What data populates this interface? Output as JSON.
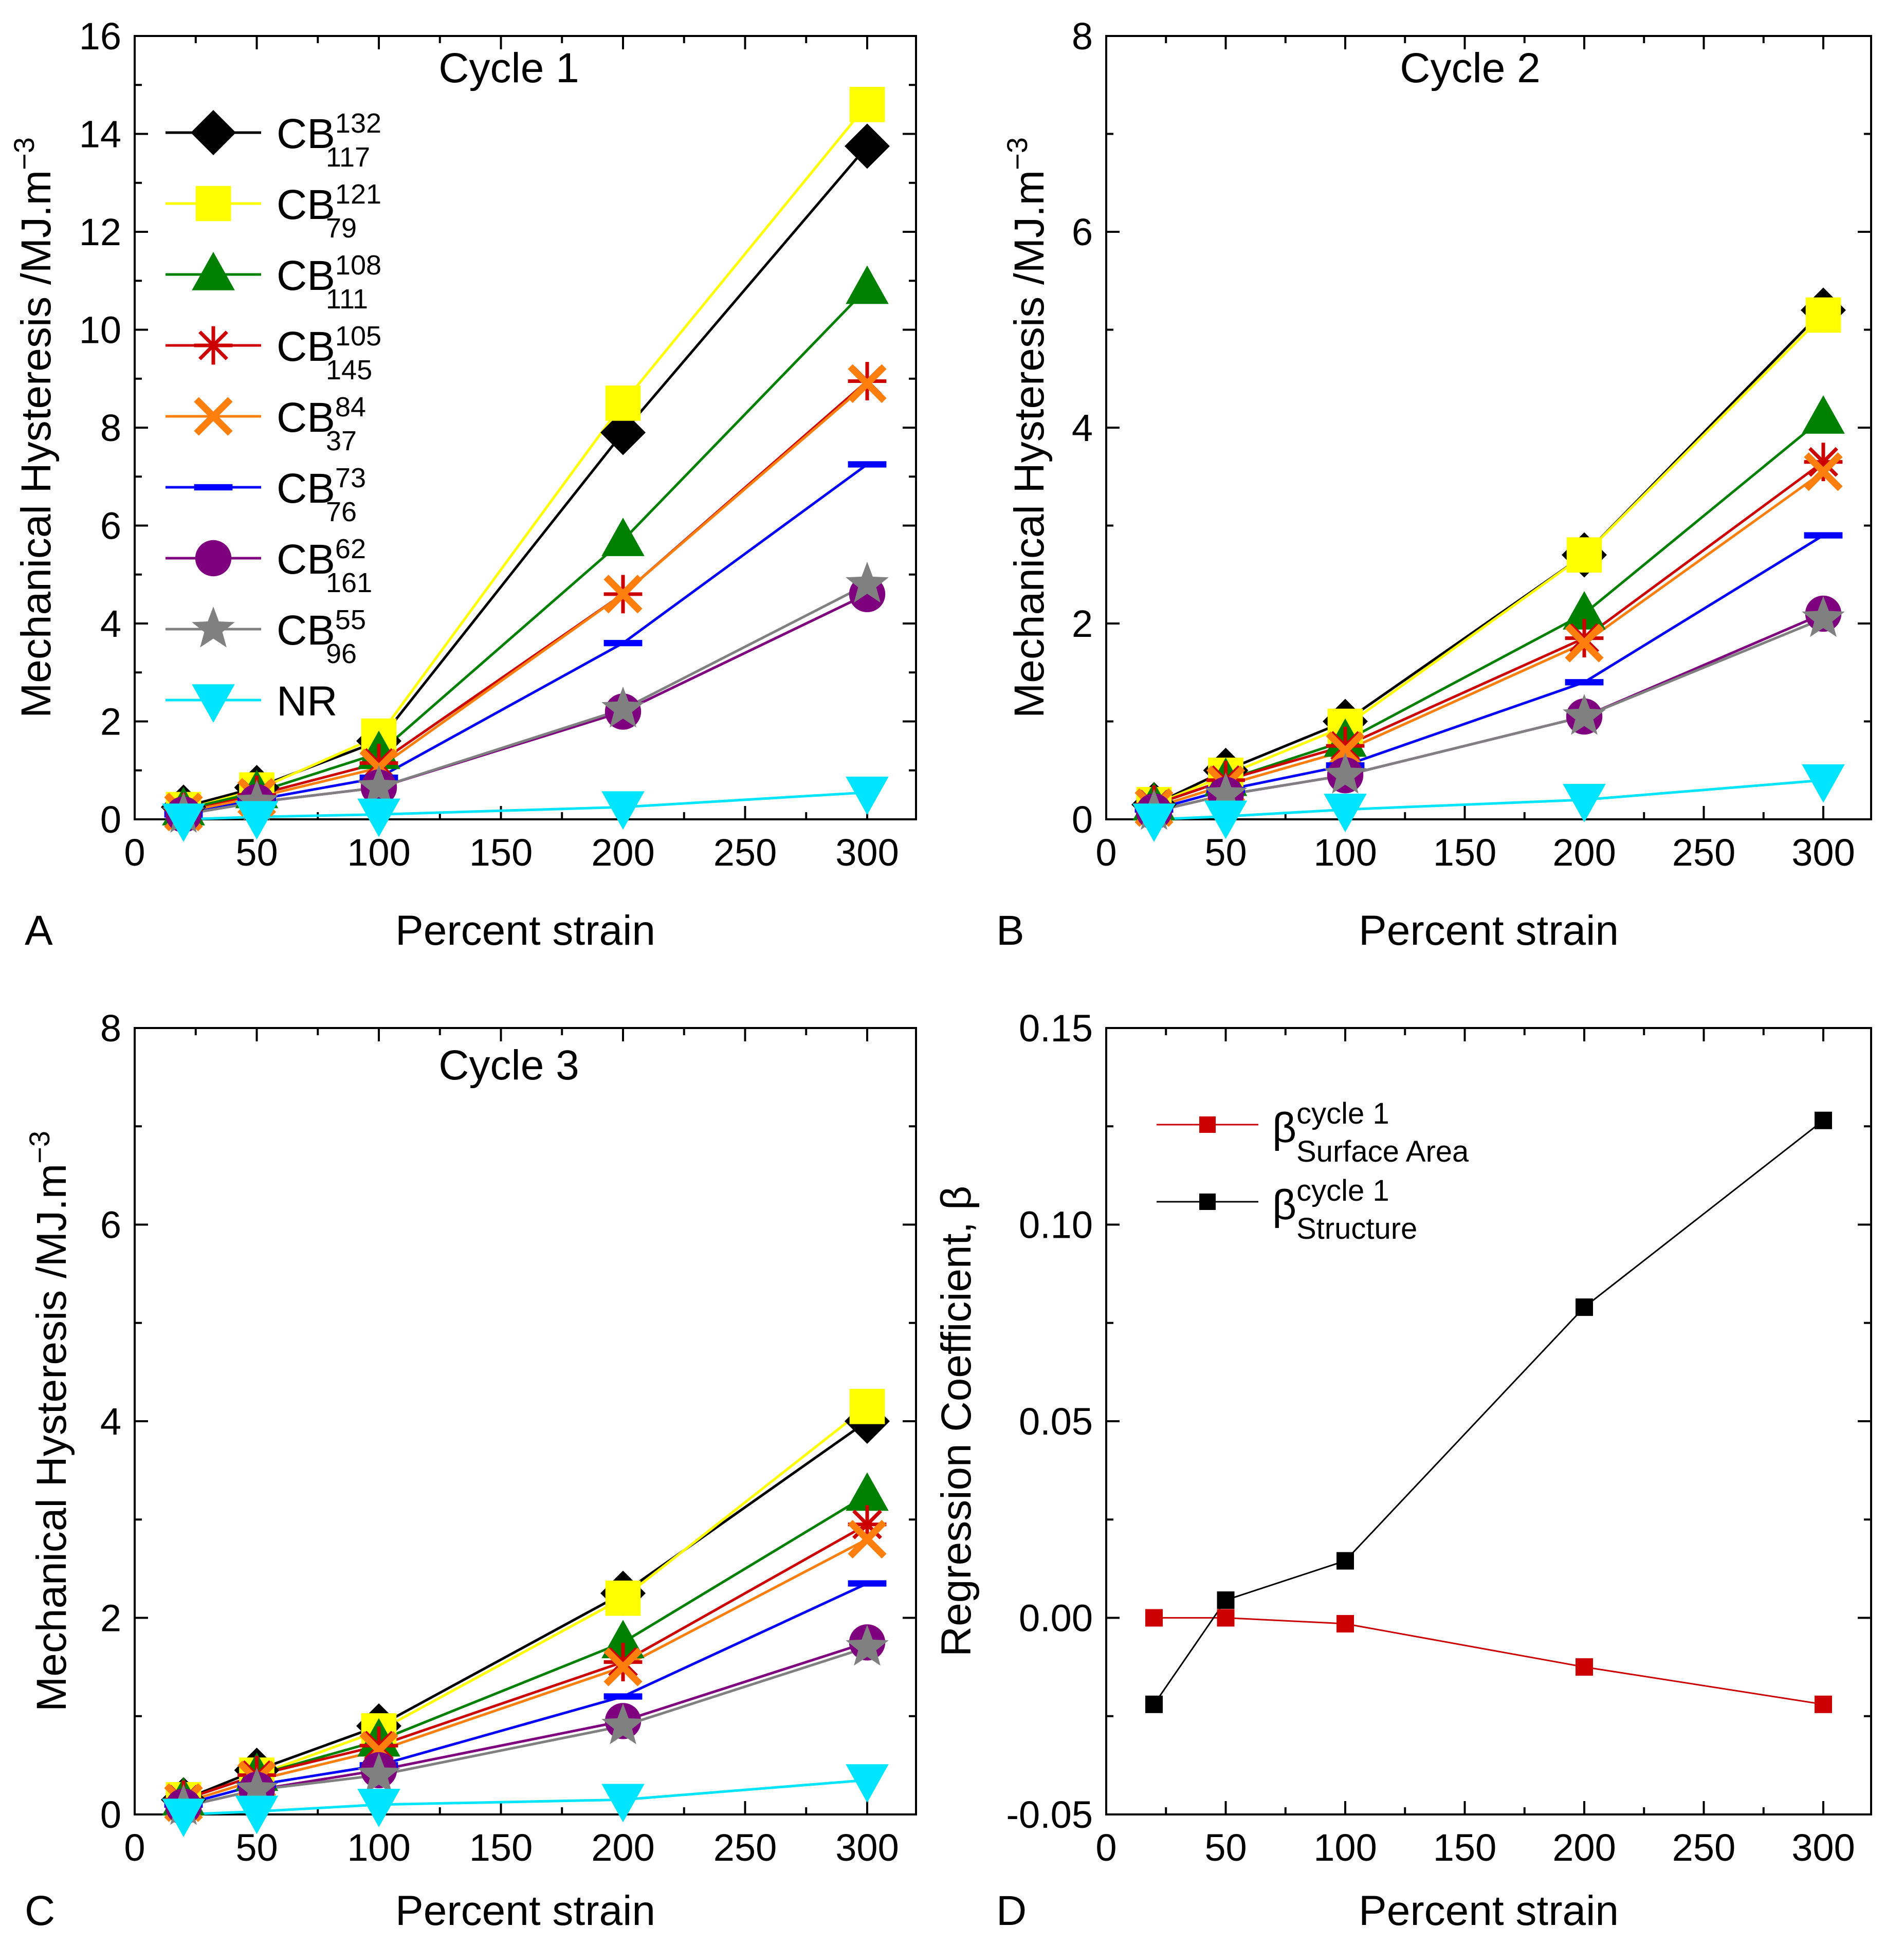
{
  "figure": {
    "panel_ids": [
      "A",
      "B",
      "C",
      "D"
    ]
  },
  "chart_data": [
    {
      "id": "A",
      "type": "line",
      "title": "Cycle 1",
      "xlabel": "Percent strain",
      "ylabel": "Mechanical Hysteresis /MJ.m",
      "ylabel_sup": "−3",
      "xlim": [
        0,
        320
      ],
      "ylim": [
        0,
        16
      ],
      "xticks": [
        0,
        50,
        100,
        150,
        200,
        250,
        300
      ],
      "yticks": [
        0,
        2,
        4,
        6,
        8,
        10,
        12,
        14,
        16
      ],
      "x": [
        20,
        50,
        100,
        200,
        300
      ],
      "series": [
        {
          "name": "CB",
          "sup": "132",
          "sub": "117",
          "color": "#000000",
          "marker": "diamond",
          "values": [
            0.25,
            0.65,
            1.6,
            7.9,
            13.75
          ]
        },
        {
          "name": "CB",
          "sup": "121",
          "sub": "79",
          "color": "#ffff00",
          "marker": "square",
          "values": [
            0.2,
            0.6,
            1.7,
            8.5,
            14.6
          ]
        },
        {
          "name": "CB",
          "sup": "108",
          "sub": "111",
          "color": "#008000",
          "marker": "triangle-up",
          "values": [
            0.2,
            0.55,
            1.35,
            5.7,
            10.85
          ]
        },
        {
          "name": "CB",
          "sup": "105",
          "sub": "145",
          "color": "#cc0000",
          "marker": "asterisk",
          "values": [
            0.15,
            0.5,
            1.15,
            4.6,
            8.95
          ]
        },
        {
          "name": "CB",
          "sup": "84",
          "sub": "37",
          "color": "#ff7f0e",
          "marker": "x",
          "values": [
            0.15,
            0.45,
            1.05,
            4.6,
            8.9
          ]
        },
        {
          "name": "CB",
          "sup": "73",
          "sub": "76",
          "color": "#0000ff",
          "marker": "dash",
          "values": [
            0.1,
            0.4,
            0.85,
            3.6,
            7.25
          ]
        },
        {
          "name": "CB",
          "sup": "62",
          "sub": "161",
          "color": "#7f007f",
          "marker": "circle",
          "values": [
            0.1,
            0.35,
            0.65,
            2.2,
            4.6
          ]
        },
        {
          "name": "CB",
          "sup": "55",
          "sub": "96",
          "color": "#808080",
          "marker": "star",
          "values": [
            0.1,
            0.35,
            0.65,
            2.25,
            4.8
          ]
        },
        {
          "name": "NR",
          "sup": "",
          "sub": "",
          "color": "#00e5ff",
          "marker": "triangle-down",
          "values": [
            0.0,
            0.05,
            0.1,
            0.25,
            0.55
          ]
        }
      ]
    },
    {
      "id": "B",
      "type": "line",
      "title": "Cycle 2",
      "xlabel": "Percent strain",
      "ylabel": "Mechanical Hysteresis /MJ.m",
      "ylabel_sup": "−3",
      "xlim": [
        0,
        320
      ],
      "ylim": [
        0,
        8
      ],
      "xticks": [
        0,
        50,
        100,
        150,
        200,
        250,
        300
      ],
      "yticks": [
        0,
        2,
        4,
        6,
        8
      ],
      "x": [
        20,
        50,
        100,
        200,
        300
      ],
      "series": [
        {
          "name": "CB",
          "sup": "132",
          "sub": "117",
          "color": "#000000",
          "marker": "diamond",
          "values": [
            0.15,
            0.5,
            1.0,
            2.7,
            5.2
          ]
        },
        {
          "name": "CB",
          "sup": "121",
          "sub": "79",
          "color": "#ffff00",
          "marker": "square",
          "values": [
            0.15,
            0.45,
            0.95,
            2.7,
            5.15
          ]
        },
        {
          "name": "CB",
          "sup": "108",
          "sub": "111",
          "color": "#008000",
          "marker": "triangle-up",
          "values": [
            0.15,
            0.4,
            0.8,
            2.1,
            4.1
          ]
        },
        {
          "name": "CB",
          "sup": "105",
          "sub": "145",
          "color": "#cc0000",
          "marker": "asterisk",
          "values": [
            0.15,
            0.4,
            0.75,
            1.85,
            3.65
          ]
        },
        {
          "name": "CB",
          "sup": "84",
          "sub": "37",
          "color": "#ff7f0e",
          "marker": "x",
          "values": [
            0.12,
            0.35,
            0.7,
            1.8,
            3.55
          ]
        },
        {
          "name": "CB",
          "sup": "73",
          "sub": "76",
          "color": "#0000ff",
          "marker": "dash",
          "values": [
            0.1,
            0.3,
            0.55,
            1.4,
            2.9
          ]
        },
        {
          "name": "CB",
          "sup": "62",
          "sub": "161",
          "color": "#7f007f",
          "marker": "circle",
          "values": [
            0.08,
            0.25,
            0.45,
            1.05,
            2.1
          ]
        },
        {
          "name": "CB",
          "sup": "55",
          "sub": "96",
          "color": "#808080",
          "marker": "star",
          "values": [
            0.08,
            0.25,
            0.45,
            1.05,
            2.05
          ]
        },
        {
          "name": "NR",
          "sup": "",
          "sub": "",
          "color": "#00e5ff",
          "marker": "triangle-down",
          "values": [
            0.0,
            0.03,
            0.1,
            0.2,
            0.4
          ]
        }
      ]
    },
    {
      "id": "C",
      "type": "line",
      "title": "Cycle 3",
      "xlabel": "Percent strain",
      "ylabel": "Mechanical Hysteresis /MJ.m",
      "ylabel_sup": "−3",
      "xlim": [
        0,
        320
      ],
      "ylim": [
        0,
        8
      ],
      "xticks": [
        0,
        50,
        100,
        150,
        200,
        250,
        300
      ],
      "yticks": [
        0,
        2,
        4,
        6,
        8
      ],
      "x": [
        20,
        50,
        100,
        200,
        300
      ],
      "series": [
        {
          "name": "CB",
          "sup": "132",
          "sub": "117",
          "color": "#000000",
          "marker": "diamond",
          "values": [
            0.15,
            0.45,
            0.9,
            2.25,
            4.0
          ]
        },
        {
          "name": "CB",
          "sup": "121",
          "sub": "79",
          "color": "#ffff00",
          "marker": "square",
          "values": [
            0.15,
            0.4,
            0.85,
            2.2,
            4.15
          ]
        },
        {
          "name": "CB",
          "sup": "108",
          "sub": "111",
          "color": "#008000",
          "marker": "triangle-up",
          "values": [
            0.15,
            0.4,
            0.75,
            1.75,
            3.25
          ]
        },
        {
          "name": "CB",
          "sup": "105",
          "sub": "145",
          "color": "#cc0000",
          "marker": "asterisk",
          "values": [
            0.15,
            0.4,
            0.7,
            1.55,
            2.95
          ]
        },
        {
          "name": "CB",
          "sup": "84",
          "sub": "37",
          "color": "#ff7f0e",
          "marker": "x",
          "values": [
            0.12,
            0.35,
            0.65,
            1.5,
            2.8
          ]
        },
        {
          "name": "CB",
          "sup": "73",
          "sub": "76",
          "color": "#0000ff",
          "marker": "dash",
          "values": [
            0.1,
            0.3,
            0.5,
            1.2,
            2.35
          ]
        },
        {
          "name": "CB",
          "sup": "62",
          "sub": "161",
          "color": "#7f007f",
          "marker": "circle",
          "values": [
            0.08,
            0.25,
            0.45,
            0.95,
            1.75
          ]
        },
        {
          "name": "CB",
          "sup": "55",
          "sub": "96",
          "color": "#808080",
          "marker": "star",
          "values": [
            0.08,
            0.25,
            0.4,
            0.9,
            1.7
          ]
        },
        {
          "name": "NR",
          "sup": "",
          "sub": "",
          "color": "#00e5ff",
          "marker": "triangle-down",
          "values": [
            0.0,
            0.03,
            0.1,
            0.15,
            0.35
          ]
        }
      ]
    },
    {
      "id": "D",
      "type": "line",
      "title": "",
      "xlabel": "Percent strain",
      "ylabel": "Regression Coefficient, β",
      "ylabel_sup": "",
      "xlim": [
        0,
        320
      ],
      "ylim": [
        -0.05,
        0.15
      ],
      "xticks": [
        0,
        50,
        100,
        150,
        200,
        250,
        300
      ],
      "yticks": [
        -0.05,
        0.0,
        0.05,
        0.1,
        0.15
      ],
      "ytick_labels": [
        "-0.05",
        "0.00",
        "0.05",
        "0.10",
        "0.15"
      ],
      "x": [
        20,
        50,
        100,
        200,
        300
      ],
      "series": [
        {
          "name": "β",
          "sup": "cycle 1",
          "sub": "Surface Area",
          "color": "#cc0000",
          "marker": "square-small",
          "values": [
            0.0,
            0.0,
            -0.0015,
            -0.0125,
            -0.022
          ]
        },
        {
          "name": "β",
          "sup": "cycle 1",
          "sub": "Structure",
          "color": "#000000",
          "marker": "square-small",
          "values": [
            -0.022,
            0.0045,
            0.0145,
            0.079,
            0.1265
          ]
        }
      ]
    }
  ]
}
